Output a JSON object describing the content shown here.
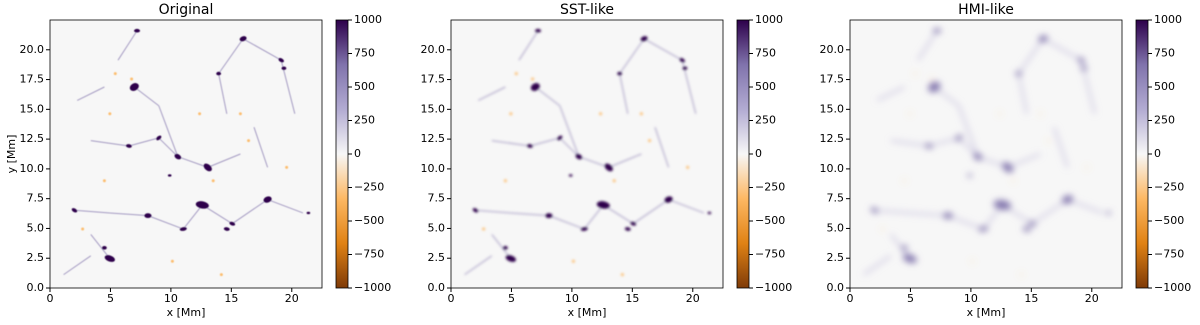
{
  "chart_data": [
    {
      "type": "heatmap",
      "title": "Original",
      "xlabel": "x [Mm]",
      "ylabel": "y [Mm]",
      "xlim": [
        0,
        22.5
      ],
      "ylim": [
        0,
        22.5
      ],
      "xticks": [
        0,
        5,
        10,
        15,
        20
      ],
      "yticks": [
        {
          "value": 0,
          "label": "0.0"
        },
        {
          "value": 2.5,
          "label": "2.5"
        },
        {
          "value": 5,
          "label": "5.0"
        },
        {
          "value": 7.5,
          "label": "7.5"
        },
        {
          "value": 10,
          "label": "10.0"
        },
        {
          "value": 12.5,
          "label": "12.5"
        },
        {
          "value": 15,
          "label": "15.0"
        },
        {
          "value": 17.5,
          "label": "17.5"
        },
        {
          "value": 20,
          "label": "20.0"
        }
      ],
      "colorbar": {
        "lim": [
          -1000,
          1000
        ],
        "ticks": [
          {
            "value": -1000,
            "label": "−1000"
          },
          {
            "value": -750,
            "label": "−750"
          },
          {
            "value": -500,
            "label": "−500"
          },
          {
            "value": -250,
            "label": "−250"
          },
          0,
          250,
          500,
          750,
          1000
        ],
        "colors": [
          "#7f3b08",
          "#e08214",
          "#fdb863",
          "#f7f7f7",
          "#b2abd2",
          "#8073ac",
          "#2d004b"
        ]
      }
    },
    {
      "type": "heatmap",
      "title": "SST-like",
      "xlabel": "x [Mm]",
      "xlim": [
        0,
        22.5
      ],
      "ylim": [
        0,
        22.5
      ],
      "xticks": [
        0,
        5,
        10,
        15,
        20
      ],
      "yticks": [
        {
          "value": 0,
          "label": "0.0"
        },
        {
          "value": 2.5,
          "label": "2.5"
        },
        {
          "value": 5,
          "label": "5.0"
        },
        {
          "value": 7.5,
          "label": "7.5"
        },
        {
          "value": 10,
          "label": "10.0"
        },
        {
          "value": 12.5,
          "label": "12.5"
        },
        {
          "value": 15,
          "label": "15.0"
        },
        {
          "value": 17.5,
          "label": "17.5"
        },
        {
          "value": 20,
          "label": "20.0"
        }
      ],
      "colorbar": {
        "lim": [
          -1000,
          1000
        ],
        "ticks": [
          {
            "value": -1000,
            "label": "−1000"
          },
          {
            "value": -750,
            "label": "−750"
          },
          {
            "value": -500,
            "label": "−500"
          },
          {
            "value": -250,
            "label": "−250"
          },
          0,
          250,
          500,
          750,
          1000
        ],
        "colors": [
          "#7f3b08",
          "#e08214",
          "#fdb863",
          "#f7f7f7",
          "#b2abd2",
          "#8073ac",
          "#2d004b"
        ]
      }
    },
    {
      "type": "heatmap",
      "title": "HMI-like",
      "xlabel": "x [Mm]",
      "xlim": [
        0,
        22.5
      ],
      "ylim": [
        0,
        22.5
      ],
      "xticks": [
        0,
        5,
        10,
        15,
        20
      ],
      "yticks": [
        {
          "value": 0,
          "label": "0.0"
        },
        {
          "value": 2.5,
          "label": "2.5"
        },
        {
          "value": 5,
          "label": "5.0"
        },
        {
          "value": 7.5,
          "label": "7.5"
        },
        {
          "value": 10,
          "label": "10.0"
        },
        {
          "value": 12.5,
          "label": "12.5"
        },
        {
          "value": 15,
          "label": "15.0"
        },
        {
          "value": 17.5,
          "label": "17.5"
        },
        {
          "value": 20,
          "label": "20.0"
        }
      ],
      "colorbar": {
        "lim": [
          -1000,
          1000
        ],
        "ticks": [
          {
            "value": -1000,
            "label": "−1000"
          },
          {
            "value": -750,
            "label": "−750"
          },
          {
            "value": -500,
            "label": "−500"
          },
          {
            "value": -250,
            "label": "−250"
          },
          0,
          250,
          500,
          750,
          1000
        ],
        "colors": [
          "#7f3b08",
          "#e08214",
          "#fdb863",
          "#f7f7f7",
          "#b2abd2",
          "#8073ac",
          "#2d004b"
        ]
      }
    }
  ]
}
